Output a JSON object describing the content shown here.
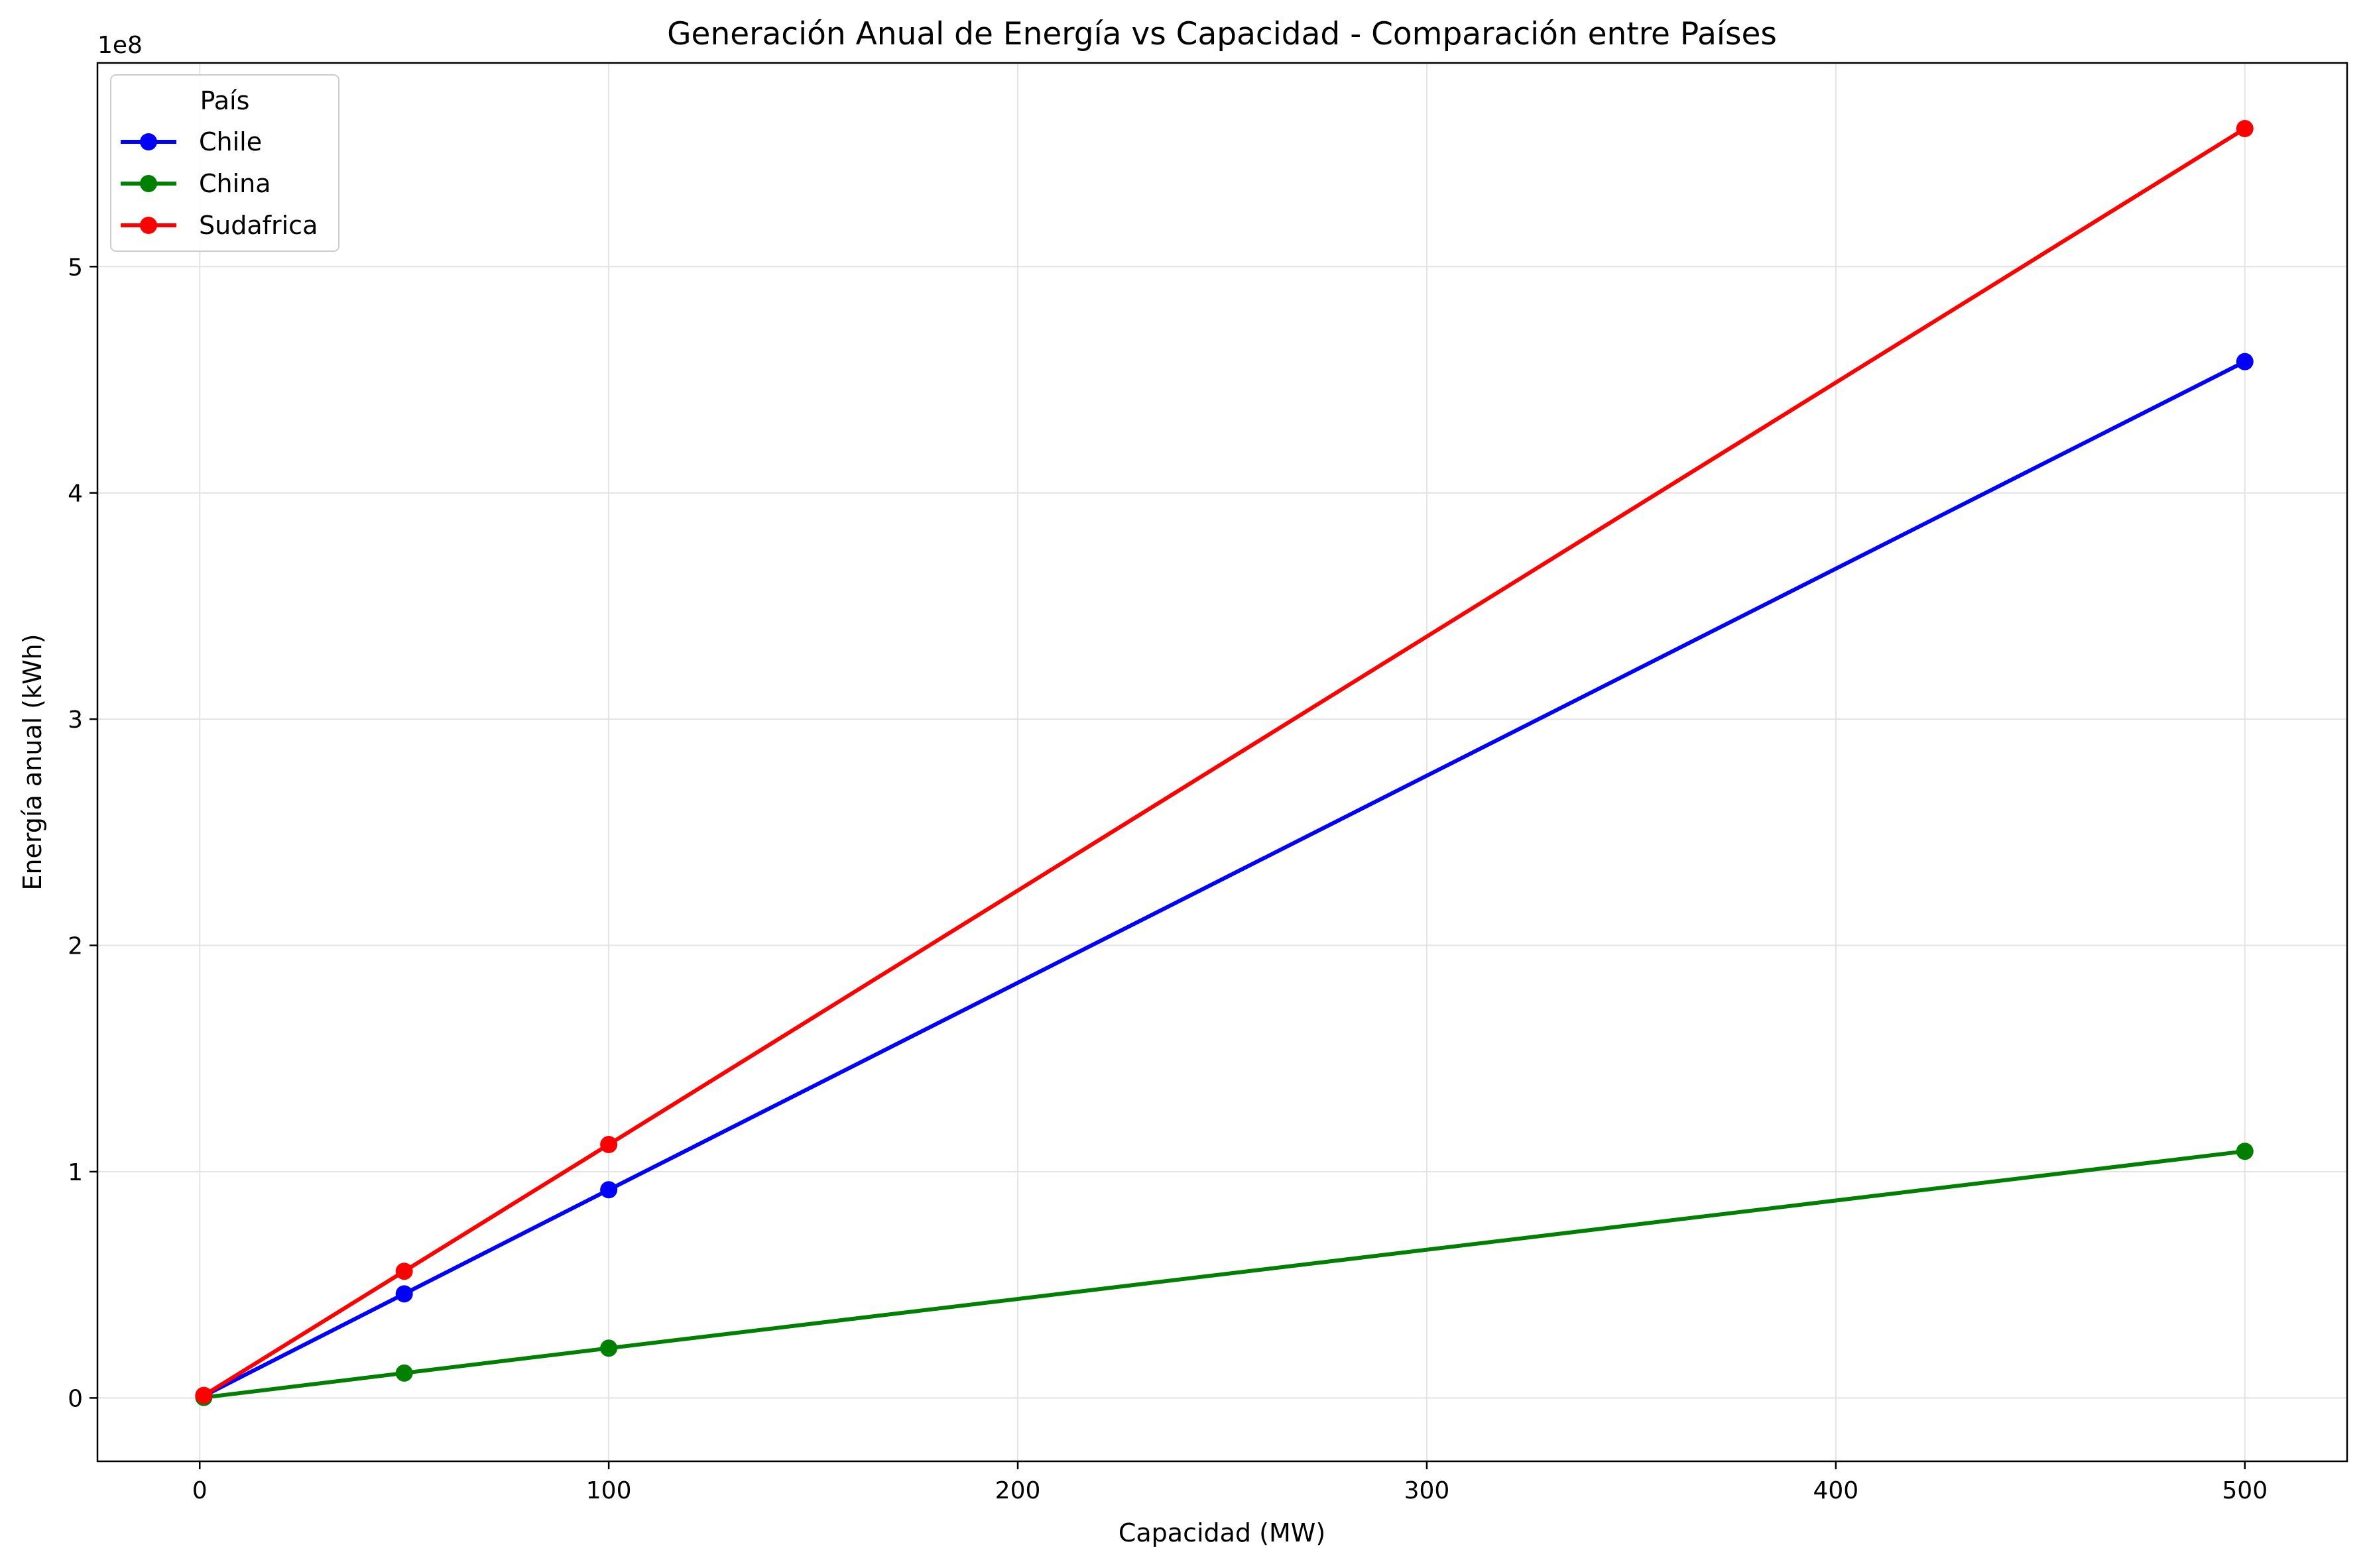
{
  "chart_data": {
    "type": "line",
    "title": "Generación Anual de Energía vs Capacidad - Comparación entre Países",
    "xlabel": "Capacidad (MW)",
    "ylabel": "Energía anual (kWh)",
    "y_offset_label": "1e8",
    "xlim": [
      -25,
      525
    ],
    "ylim": [
      -0.28,
      5.9
    ],
    "y_unit_multiplier": 100000000,
    "xticks": [
      0,
      100,
      200,
      300,
      400,
      500
    ],
    "yticks": [
      0,
      1,
      2,
      3,
      4,
      5
    ],
    "grid": true,
    "legend": {
      "title": "País",
      "position": "top-left"
    },
    "x": [
      1,
      50,
      100,
      500
    ],
    "series": [
      {
        "name": "Chile",
        "color": "#0000ff",
        "values": [
          0.0092,
          0.46,
          0.92,
          4.58
        ]
      },
      {
        "name": "China",
        "color": "#008000",
        "values": [
          0.0022,
          0.11,
          0.22,
          1.09
        ]
      },
      {
        "name": "Sudafrica",
        "color": "#ff0000",
        "values": [
          0.0112,
          0.56,
          1.12,
          5.61
        ]
      }
    ]
  }
}
